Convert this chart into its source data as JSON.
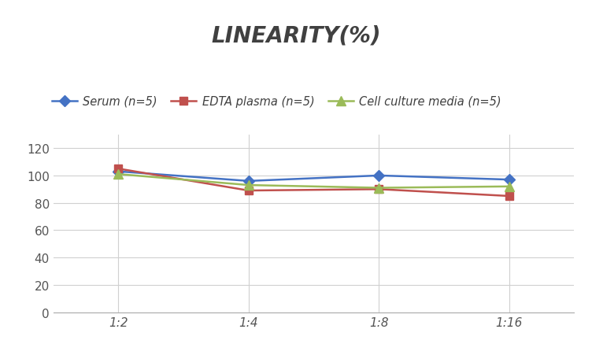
{
  "title": "LINEARITY(%)",
  "x_labels": [
    "1:2",
    "1:4",
    "1:8",
    "1:16"
  ],
  "x_positions": [
    0,
    1,
    2,
    3
  ],
  "series": [
    {
      "label": "Serum (n=5)",
      "values": [
        103,
        96,
        100,
        97
      ],
      "color": "#4472C4",
      "marker": "D",
      "markersize": 7
    },
    {
      "label": "EDTA plasma (n=5)",
      "values": [
        105,
        89,
        90,
        85
      ],
      "color": "#C0504D",
      "marker": "s",
      "markersize": 7
    },
    {
      "label": "Cell culture media (n=5)",
      "values": [
        101,
        93,
        91,
        92
      ],
      "color": "#9BBB59",
      "marker": "^",
      "markersize": 8
    }
  ],
  "ylim": [
    0,
    130
  ],
  "yticks": [
    0,
    20,
    40,
    60,
    80,
    100,
    120
  ],
  "grid_color": "#D0D0D0",
  "background_color": "#FFFFFF",
  "title_fontsize": 20,
  "title_fontstyle": "italic",
  "title_fontweight": "bold",
  "tick_fontsize": 11,
  "legend_fontsize": 10.5,
  "title_color": "#404040"
}
